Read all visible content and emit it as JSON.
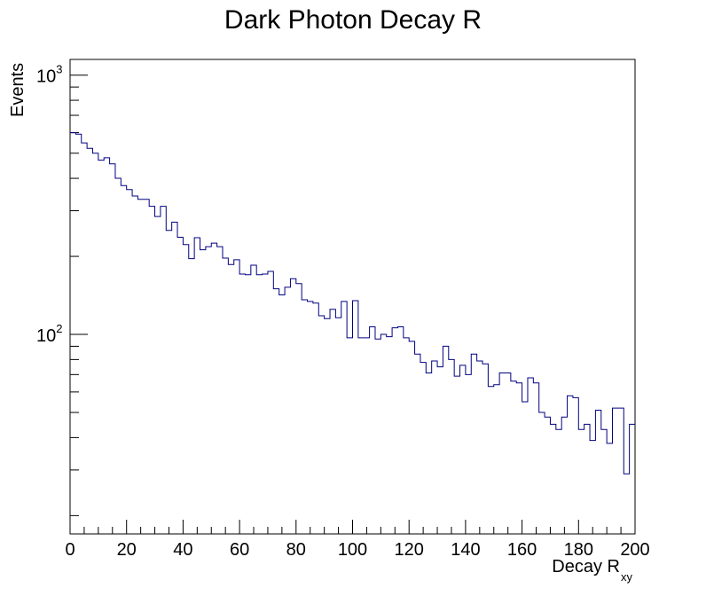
{
  "chart_data": {
    "type": "histogram",
    "title": "Dark Photon Decay R",
    "xlabel": "Decay R",
    "xlabel_subscript": "xy",
    "ylabel": "Events",
    "xlim": [
      0,
      200
    ],
    "ylim": [
      17,
      1150
    ],
    "yscale": "log",
    "grid": false,
    "legend": "none",
    "line_color": "#000080",
    "bin_width": 2,
    "x_ticks": [
      "0",
      "20",
      "40",
      "60",
      "80",
      "100",
      "120",
      "140",
      "160",
      "180",
      "200"
    ],
    "y_ticks": [
      {
        "base": "10",
        "exp": "2",
        "value": 100
      },
      {
        "base": "10",
        "exp": "3",
        "value": 1000
      }
    ],
    "values": [
      600,
      592,
      548,
      522,
      500,
      470,
      480,
      455,
      400,
      375,
      362,
      342,
      332,
      332,
      312,
      285,
      312,
      252,
      271,
      237,
      222,
      196,
      236,
      212,
      218,
      225,
      218,
      197,
      186,
      194,
      171,
      170,
      185,
      170,
      171,
      175,
      150,
      142,
      152,
      164,
      157,
      136,
      134,
      132,
      118,
      115,
      125,
      116,
      134,
      97,
      135,
      97,
      97,
      107,
      96,
      100,
      98,
      106,
      107,
      97,
      94,
      84,
      78,
      71,
      79,
      75,
      90,
      80,
      69,
      76,
      70,
      84,
      79,
      77,
      63,
      64,
      71,
      71,
      66,
      65,
      55,
      68,
      65,
      50,
      48,
      45,
      43,
      48,
      58,
      57,
      43,
      45,
      39,
      51,
      43,
      38,
      52,
      52,
      29,
      45
    ]
  }
}
